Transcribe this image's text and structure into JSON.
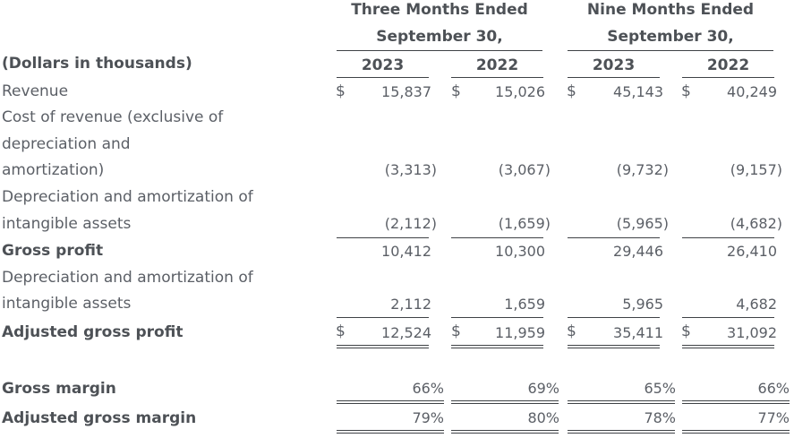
{
  "header": {
    "group_three": [
      "Three Months Ended",
      "September 30,"
    ],
    "group_nine": [
      "Nine Months Ended",
      "September 30,"
    ],
    "units_label": "(Dollars in thousands)",
    "years": [
      "2023",
      "2022",
      "2023",
      "2022"
    ]
  },
  "currency_symbol": "$",
  "rows": {
    "revenue": {
      "label": "Revenue",
      "values": [
        "15,837",
        "15,026",
        "45,143",
        "40,249"
      ]
    },
    "cost_of_revenue": {
      "label_lines": [
        "Cost of revenue (exclusive of",
        "depreciation and",
        "amortization)"
      ],
      "values": [
        "(3,313)",
        "(3,067)",
        "(9,732)",
        "(9,157)"
      ]
    },
    "depr_amort_1": {
      "label_lines": [
        "Depreciation and amortization of",
        "intangible assets"
      ],
      "values": [
        "(2,112)",
        "(1,659)",
        "(5,965)",
        "(4,682)"
      ]
    },
    "gross_profit": {
      "label": "Gross profit",
      "values": [
        "10,412",
        "10,300",
        "29,446",
        "26,410"
      ]
    },
    "depr_amort_2": {
      "label_lines": [
        "Depreciation and amortization of",
        "intangible assets"
      ],
      "values": [
        "2,112",
        "1,659",
        "5,965",
        "4,682"
      ]
    },
    "adjusted_gross_profit": {
      "label": "Adjusted gross profit",
      "values": [
        "12,524",
        "11,959",
        "35,411",
        "31,092"
      ]
    },
    "gross_margin": {
      "label": "Gross margin",
      "values": [
        "66%",
        "69%",
        "65%",
        "66%"
      ]
    },
    "adjusted_gross_margin": {
      "label": "Adjusted gross margin",
      "values": [
        "79%",
        "80%",
        "78%",
        "77%"
      ]
    }
  }
}
